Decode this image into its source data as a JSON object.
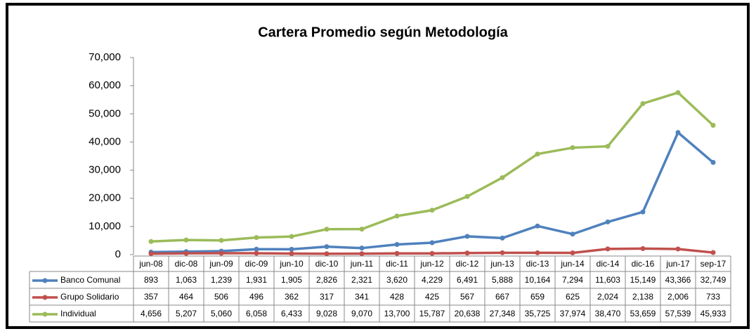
{
  "chart_data": {
    "type": "line",
    "title": "Cartera Promedio según Metodología",
    "categories": [
      "jun-08",
      "dic-08",
      "jun-09",
      "dic-09",
      "jun-10",
      "dic-10",
      "jun-11",
      "dic-11",
      "jun-12",
      "dic-12",
      "jun-13",
      "dic-13",
      "jun-14",
      "dic-14",
      "dic-16",
      "jun-17",
      "sep-17"
    ],
    "ylim": [
      0,
      70000
    ],
    "yticks": [
      0,
      {
        "value": 10000,
        "label": "10,000"
      },
      {
        "value": 20000,
        "label": "20,000"
      },
      {
        "value": 30000,
        "label": "30,000"
      },
      {
        "value": 40000,
        "label": "40,000"
      },
      {
        "value": 50000,
        "label": "50,000"
      },
      {
        "value": 60000,
        "label": "60,000"
      },
      {
        "value": 70000,
        "label": "70,000"
      }
    ],
    "series": [
      {
        "name": "Banco Comunal",
        "color": "#4f81bd",
        "values": [
          893,
          1063,
          1239,
          1931,
          1905,
          2826,
          2321,
          3620,
          4229,
          6491,
          5888,
          10164,
          7294,
          11603,
          15149,
          43366,
          32749
        ],
        "value_labels": [
          "893",
          "1,063",
          "1,239",
          "1,931",
          "1,905",
          "2,826",
          "2,321",
          "3,620",
          "4,229",
          "6,491",
          "5,888",
          "10,164",
          "7,294",
          "11,603",
          "15,149",
          "43,366",
          "32,749"
        ]
      },
      {
        "name": "Grupo Solidario",
        "color": "#c0504d",
        "values": [
          357,
          464,
          506,
          496,
          362,
          317,
          341,
          428,
          425,
          567,
          667,
          659,
          625,
          2024,
          2138,
          2006,
          733
        ],
        "value_labels": [
          "357",
          "464",
          "506",
          "496",
          "362",
          "317",
          "341",
          "428",
          "425",
          "567",
          "667",
          "659",
          "625",
          "2,024",
          "2,138",
          "2,006",
          "733"
        ]
      },
      {
        "name": "Individual",
        "color": "#9bbb59",
        "values": [
          4656,
          5207,
          5060,
          6058,
          6433,
          9028,
          9070,
          13700,
          15787,
          20638,
          27348,
          35725,
          37974,
          38470,
          53659,
          57539,
          45933
        ],
        "value_labels": [
          "4,656",
          "5,207",
          "5,060",
          "6,058",
          "6,433",
          "9,028",
          "9,070",
          "13,700",
          "15,787",
          "20,638",
          "27,348",
          "35,725",
          "37,974",
          "38,470",
          "53,659",
          "57,539",
          "45,933"
        ]
      }
    ]
  }
}
